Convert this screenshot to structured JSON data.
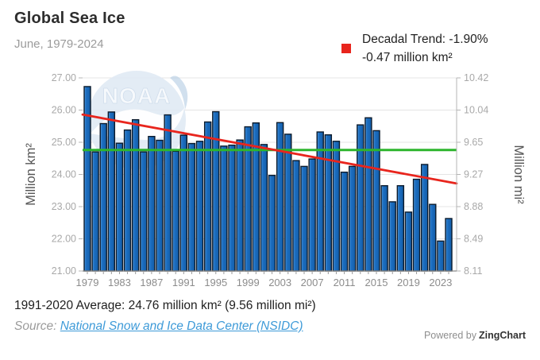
{
  "header": {
    "title": "Global Sea Ice",
    "subtitle": "June, 1979-2024"
  },
  "legend": {
    "marker_color": "#e8251d",
    "line1": "Decadal Trend: -1.90%",
    "line2": "-0.47 million km²"
  },
  "chart_data": {
    "type": "bar",
    "title": "Global Sea Ice",
    "x": [
      1979,
      1980,
      1981,
      1982,
      1983,
      1984,
      1985,
      1986,
      1987,
      1988,
      1989,
      1990,
      1991,
      1992,
      1993,
      1994,
      1995,
      1996,
      1997,
      1998,
      1999,
      2000,
      2001,
      2002,
      2003,
      2004,
      2005,
      2006,
      2007,
      2008,
      2009,
      2010,
      2011,
      2012,
      2013,
      2014,
      2015,
      2016,
      2017,
      2018,
      2019,
      2020,
      2021,
      2022,
      2023,
      2024
    ],
    "values": [
      26.73,
      24.7,
      25.58,
      25.94,
      24.97,
      25.38,
      25.7,
      24.7,
      25.18,
      25.06,
      25.85,
      24.72,
      25.22,
      24.96,
      25.03,
      25.63,
      25.95,
      24.88,
      24.91,
      25.07,
      25.48,
      25.6,
      24.93,
      23.97,
      25.61,
      25.25,
      24.43,
      24.25,
      24.48,
      25.32,
      25.23,
      25.03,
      24.07,
      24.25,
      25.54,
      25.76,
      25.36,
      23.65,
      23.15,
      23.65,
      22.83,
      23.85,
      24.31,
      23.07,
      21.93,
      22.63
    ],
    "ylabel_left": "Million km²",
    "ylabel_right": "Million mi²",
    "ylim_left": [
      21,
      27
    ],
    "yticks_left": [
      "27.00",
      "26.00",
      "25.00",
      "24.00",
      "23.00",
      "22.00",
      "21.00"
    ],
    "yticks_right": [
      "10.42",
      "10.04",
      "9.65",
      "9.27",
      "8.88",
      "8.49",
      "8.11"
    ],
    "xticks": [
      "1979",
      "1983",
      "1987",
      "1991",
      "1995",
      "1999",
      "2003",
      "2007",
      "2011",
      "2015",
      "2019",
      "2023"
    ],
    "xtick_every": 4,
    "grid": true,
    "legend_position": "top-right",
    "average_line": {
      "label": "1991-2020 Average",
      "value": 24.76,
      "color": "#2db52d"
    },
    "trend_line": {
      "label": "Decadal Trend: -1.90% (-0.47 million km²)",
      "start_value": 25.86,
      "end_value": 23.72,
      "color": "#e8251d"
    },
    "bar_color": "#1d6fc2",
    "bar_color_light": "#5aa2e2",
    "bar_color_dark": "#135da8",
    "bar_stroke": "#0c1b2c",
    "grid_color": "#e4e4e4",
    "axis_color": "#8a8a8a",
    "tick_label_color": "#a9a9a9",
    "xtick_label_color": "#8c8c8c",
    "axis_title_color": "#555555",
    "watermark": "NOAA"
  },
  "footer": {
    "average_text": "1991-2020 Average: 24.76 million km² (9.56 million mi²)",
    "source_prefix": "Source: ",
    "source_link": "National Snow and Ice Data Center (NSIDC)",
    "powered_by": "Powered by",
    "brand": "ZingChart"
  }
}
